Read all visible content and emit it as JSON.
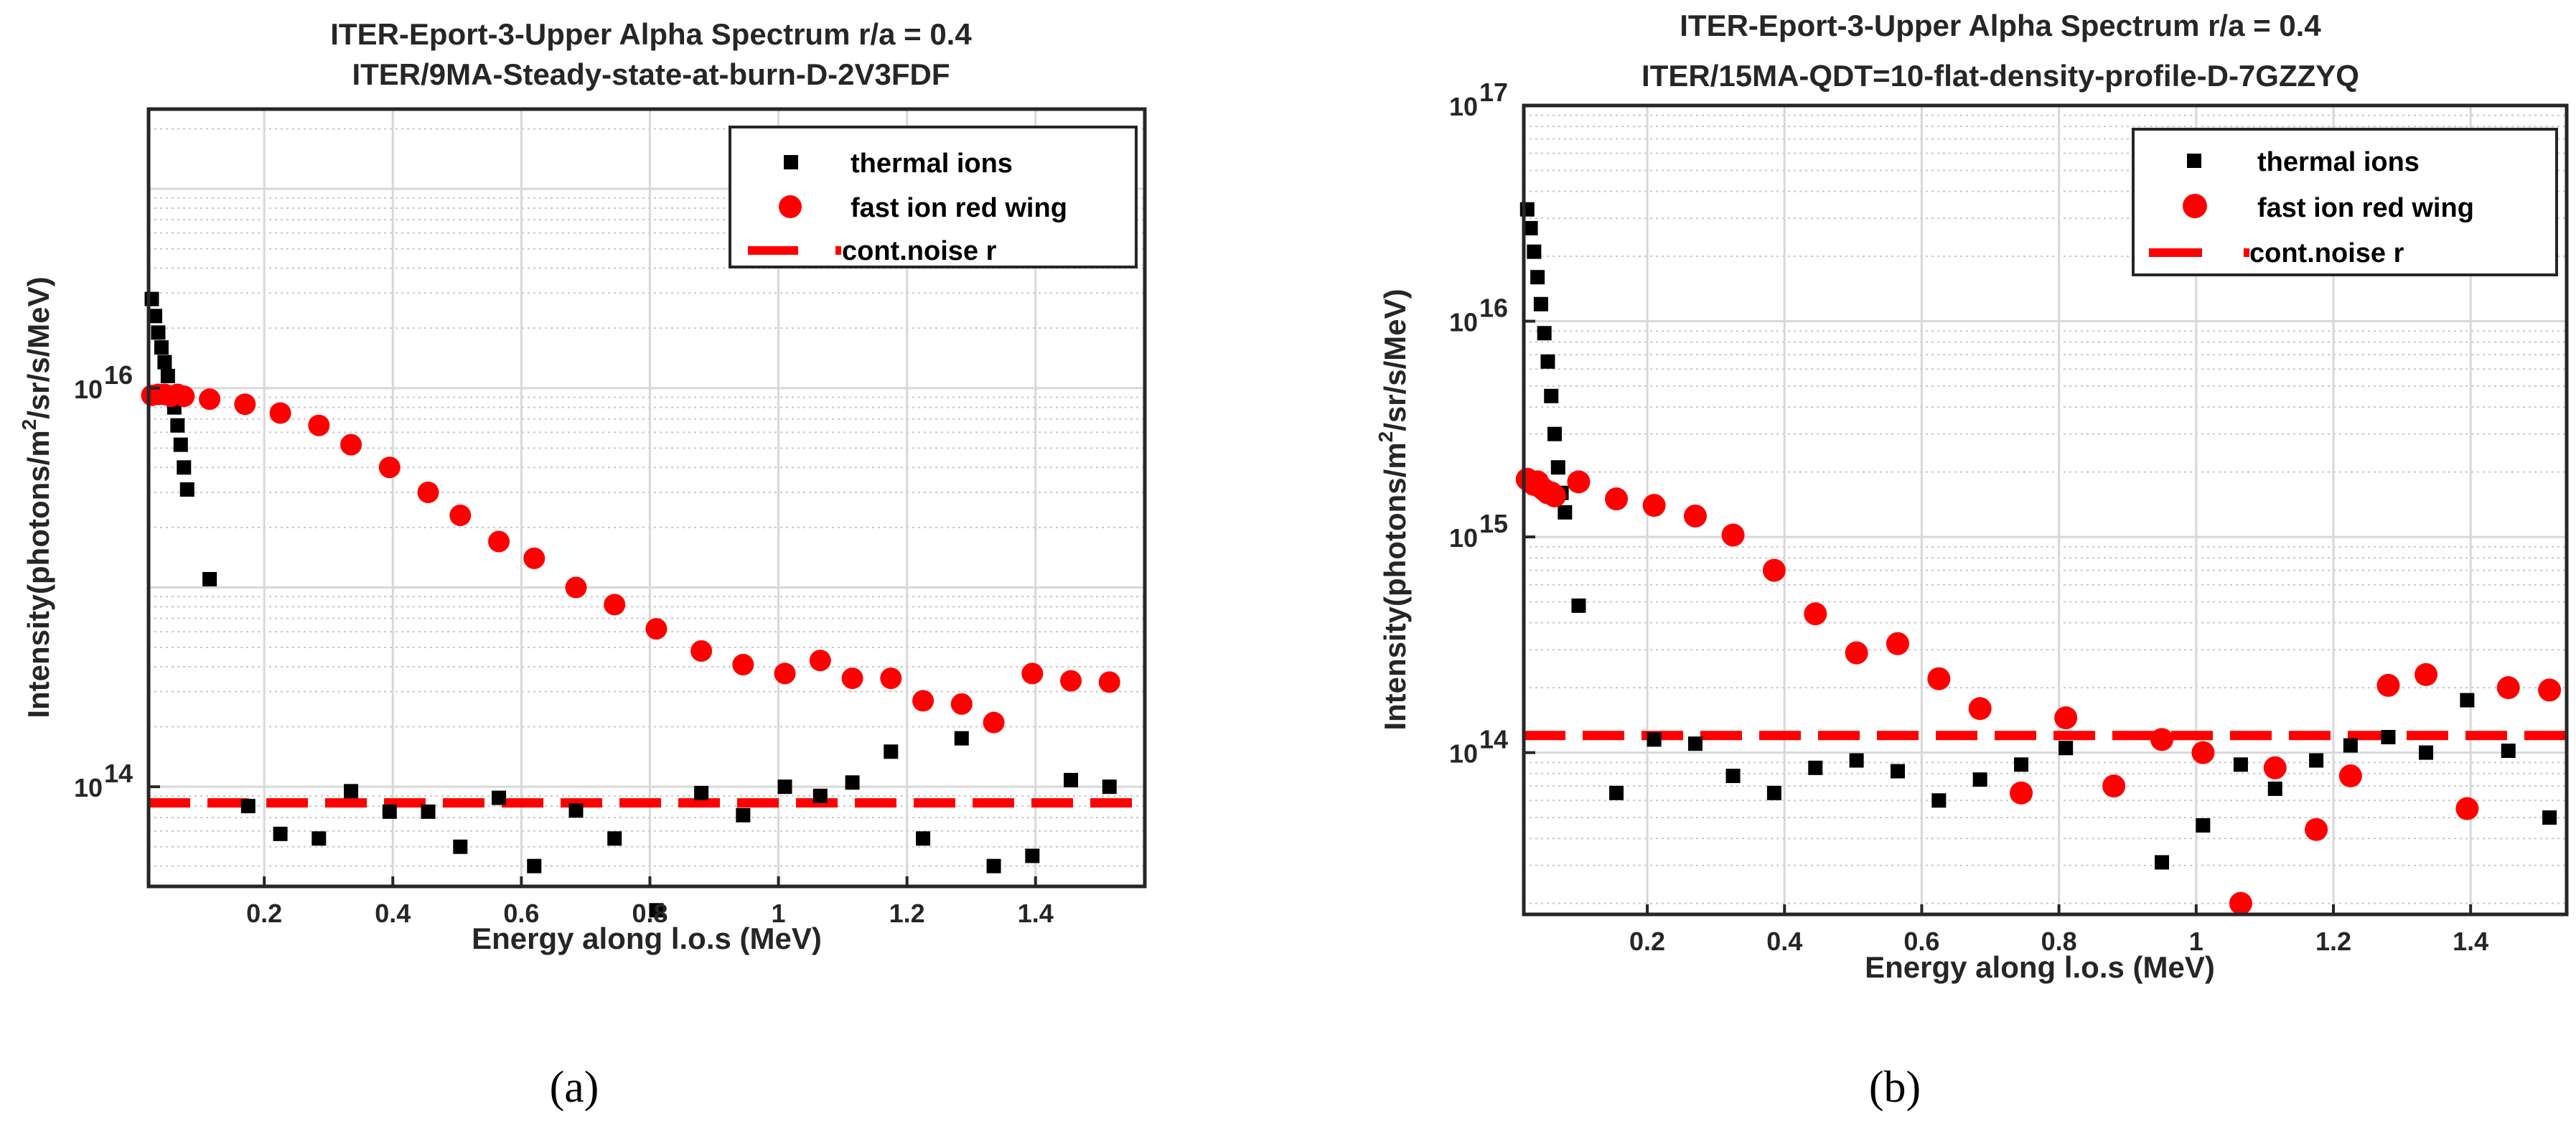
{
  "chart_data": [
    {
      "type": "scatter",
      "panel": "(a)",
      "title_line1": "ITER-Eport-3-Upper Alpha Spectrum  r/a = 0.4",
      "title_line2": "ITER/9MA-Steady-state-at-burn-D-2V3FDF",
      "xlabel": "Energy along l.o.s (MeV)",
      "ylabel_pre": "Intensity(photons/m",
      "ylabel_sup": "2",
      "ylabel_post": "/sr/s/MeV)",
      "xlim": [
        0.02,
        1.57
      ],
      "ylog": true,
      "ylim_log10": [
        13.5,
        17.4
      ],
      "xticks": [
        0.2,
        0.4,
        0.6,
        0.8,
        1.0,
        1.2,
        1.4
      ],
      "xtick_labels": [
        "0.2",
        "0.4",
        "0.6",
        "0.8",
        "1",
        "1.2",
        "1.4"
      ],
      "yticks_exp": [
        14,
        16
      ],
      "ytick_labels": [
        "10",
        "10"
      ],
      "ytick_sup": [
        "14",
        "16"
      ],
      "legend": [
        "thermal ions",
        "fast ion red wing",
        "cont.noise r"
      ],
      "noise_level": 83000000000000.0,
      "series": [
        {
          "name": "thermal ions",
          "marker": "square",
          "color": "#000000",
          "x": [
            0.025,
            0.03,
            0.035,
            0.04,
            0.045,
            0.05,
            0.055,
            0.06,
            0.065,
            0.07,
            0.075,
            0.08,
            0.115,
            0.175,
            0.225,
            0.285,
            0.335,
            0.395,
            0.455,
            0.505,
            0.565,
            0.62,
            0.685,
            0.745,
            0.81,
            0.88,
            0.945,
            1.01,
            1.065,
            1.115,
            1.175,
            1.225,
            1.285,
            1.335,
            1.395,
            1.455,
            1.515
          ],
          "y": [
            2.8e+16,
            2.3e+16,
            1.9e+16,
            1.6e+16,
            1.35e+16,
            1.15e+16,
            9500000000000000.0,
            8000000000000000.0,
            6500000000000000.0,
            5200000000000000.0,
            4000000000000000.0,
            3100000000000000.0,
            1100000000000000.0,
            80000000000000.0,
            58000000000000.0,
            55000000000000.0,
            95000000000000.0,
            75000000000000.0,
            75000000000000.0,
            50000000000000.0,
            88000000000000.0,
            40000000000000.0,
            76000000000000.0,
            55000000000000.0,
            24000000000000.0,
            93000000000000.0,
            72000000000000.0,
            100000000000000.0,
            90000000000000.0,
            105000000000000.0,
            150000000000000.0,
            55000000000000.0,
            175000000000000.0,
            40000000000000.0,
            45000000000000.0,
            108000000000000.0,
            100000000000000.0
          ]
        },
        {
          "name": "fast ion red wing",
          "marker": "circle",
          "color": "#ff0000",
          "x": [
            0.025,
            0.035,
            0.045,
            0.055,
            0.065,
            0.075,
            0.115,
            0.17,
            0.225,
            0.285,
            0.335,
            0.395,
            0.455,
            0.505,
            0.565,
            0.62,
            0.685,
            0.745,
            0.81,
            0.88,
            0.945,
            1.01,
            1.065,
            1.115,
            1.175,
            1.225,
            1.285,
            1.335,
            1.395,
            1.455,
            1.515
          ],
          "y": [
            9200000000000000.0,
            9300000000000000.0,
            9300000000000000.0,
            9100000000000000.0,
            9300000000000000.0,
            9100000000000000.0,
            8800000000000000.0,
            8300000000000000.0,
            7500000000000000.0,
            6500000000000000.0,
            5200000000000000.0,
            4000000000000000.0,
            3000000000000000.0,
            2300000000000000.0,
            1700000000000000.0,
            1400000000000000.0,
            1000000000000000.0,
            820000000000000.0,
            620000000000000.0,
            480000000000000.0,
            410000000000000.0,
            370000000000000.0,
            430000000000000.0,
            350000000000000.0,
            350000000000000.0,
            270000000000000.0,
            260000000000000.0,
            210000000000000.0,
            370000000000000.0,
            340000000000000.0,
            335000000000000.0
          ]
        }
      ]
    },
    {
      "type": "scatter",
      "panel": "(b)",
      "title_line1": "ITER-Eport-3-Upper Alpha Spectrum  r/a = 0.4",
      "title_line2": "ITER/15MA-QDT=10-flat-density-profile-D-7GZZYQ",
      "xlabel": "Energy along l.o.s (MeV)",
      "ylabel_pre": "Intensity(photons/m",
      "ylabel_sup": "2",
      "ylabel_post": "/sr/s/MeV)",
      "xlim": [
        0.02,
        1.54
      ],
      "ylog": true,
      "ylim_log10": [
        13.25,
        17.0
      ],
      "xticks": [
        0.2,
        0.4,
        0.6,
        0.8,
        1.0,
        1.2,
        1.4
      ],
      "xtick_labels": [
        "0.2",
        "0.4",
        "0.6",
        "0.8",
        "1",
        "1.2",
        "1.4"
      ],
      "yticks_exp": [
        14,
        15,
        16,
        17
      ],
      "ytick_labels": [
        "10",
        "10",
        "10",
        "10"
      ],
      "ytick_sup": [
        "14",
        "15",
        "16",
        "17"
      ],
      "legend": [
        "thermal ions",
        "fast ion red wing",
        "cont.noise r"
      ],
      "noise_level": 120000000000000.0,
      "series": [
        {
          "name": "thermal ions",
          "marker": "square",
          "color": "#000000",
          "x": [
            0.025,
            0.03,
            0.035,
            0.04,
            0.045,
            0.05,
            0.055,
            0.06,
            0.065,
            0.07,
            0.075,
            0.08,
            0.1,
            0.155,
            0.21,
            0.27,
            0.325,
            0.385,
            0.445,
            0.505,
            0.565,
            0.625,
            0.685,
            0.745,
            0.81,
            0.95,
            1.01,
            1.065,
            1.115,
            1.175,
            1.225,
            1.28,
            1.335,
            1.395,
            1.455,
            1.515
          ],
          "y": [
            3.3e+16,
            2.7e+16,
            2.1e+16,
            1.6e+16,
            1.2e+16,
            8800000000000000.0,
            6500000000000000.0,
            4500000000000000.0,
            3000000000000000.0,
            2100000000000000.0,
            1600000000000000.0,
            1300000000000000.0,
            480000000000000.0,
            65000000000000.0,
            115000000000000.0,
            110000000000000.0,
            78000000000000.0,
            65000000000000.0,
            85000000000000.0,
            92000000000000.0,
            82000000000000.0,
            60000000000000.0,
            75000000000000.0,
            88000000000000.0,
            105000000000000.0,
            31000000000000.0,
            46000000000000.0,
            88000000000000.0,
            68000000000000.0,
            92000000000000.0,
            108000000000000.0,
            118000000000000.0,
            100000000000000.0,
            175000000000000.0,
            102000000000000.0,
            50000000000000.0
          ]
        },
        {
          "name": "fast ion red wing",
          "marker": "circle",
          "color": "#ff0000",
          "x": [
            0.025,
            0.03,
            0.035,
            0.04,
            0.045,
            0.05,
            0.055,
            0.06,
            0.065,
            0.1,
            0.155,
            0.21,
            0.27,
            0.325,
            0.385,
            0.445,
            0.505,
            0.565,
            0.625,
            0.685,
            0.81,
            0.745,
            0.88,
            0.95,
            1.01,
            1.065,
            1.115,
            1.175,
            1.225,
            1.28,
            1.335,
            1.395,
            1.455,
            1.515
          ],
          "y": [
            1850000000000000.0,
            1800000000000000.0,
            1750000000000000.0,
            1800000000000000.0,
            1700000000000000.0,
            1650000000000000.0,
            1600000000000000.0,
            1600000000000000.0,
            1550000000000000.0,
            1800000000000000.0,
            1500000000000000.0,
            1400000000000000.0,
            1250000000000000.0,
            1020000000000000.0,
            700000000000000.0,
            440000000000000.0,
            290000000000000.0,
            320000000000000.0,
            220000000000000.0,
            160000000000000.0,
            145000000000000.0,
            65000000000000.0,
            70000000000000.0,
            115000000000000.0,
            100000000000000.0,
            20000000000000.0,
            85000000000000.0,
            44000000000000.0,
            78000000000000.0,
            205000000000000.0,
            230000000000000.0,
            55000000000000.0,
            200000000000000.0,
            195000000000000.0
          ]
        }
      ]
    }
  ],
  "captions": [
    "(a)",
    "(b)"
  ],
  "colors": {
    "thermal": "#000000",
    "fast": "#ff0000",
    "noise": "#ff0000",
    "grid_major": "#d8d8d8",
    "grid_minor": "#c8c8c8",
    "axis": "#262626"
  }
}
